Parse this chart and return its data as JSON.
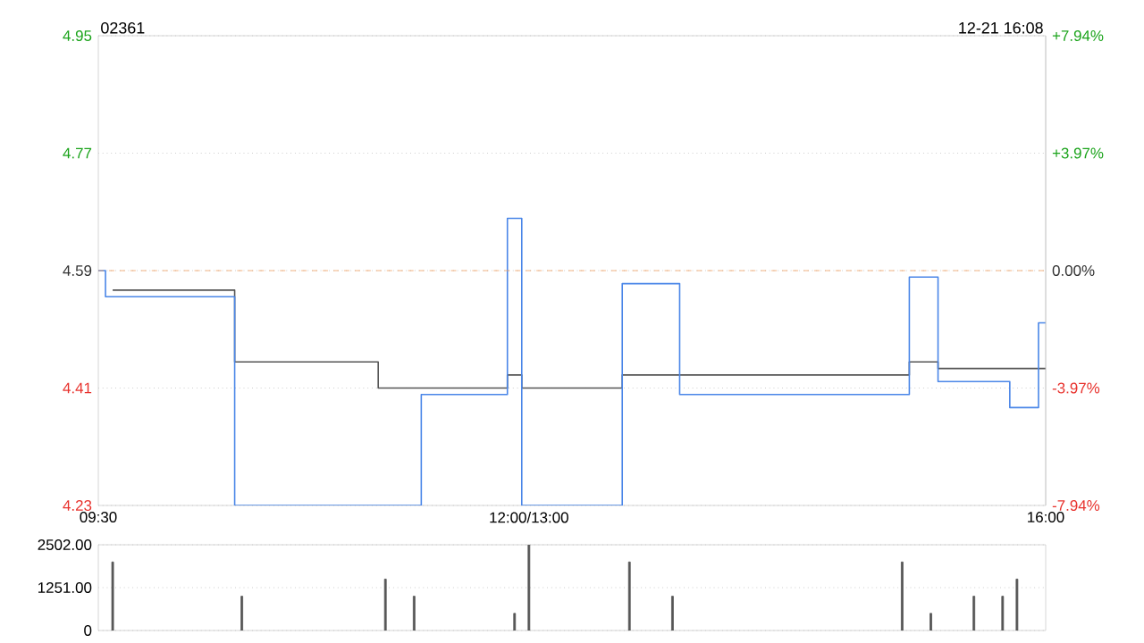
{
  "chart_data": [
    {
      "type": "step",
      "title": "02361",
      "annotations": [
        "12-21 16:08"
      ],
      "categories": [
        "09:30",
        null,
        null,
        null,
        null,
        null,
        null,
        null,
        null,
        null,
        null,
        null,
        null,
        null,
        null,
        null,
        null,
        null,
        null,
        null,
        null,
        null,
        null,
        null,
        null,
        null,
        null,
        null,
        null,
        null,
        "12:00/13:00",
        null,
        null,
        null,
        null,
        null,
        null,
        null,
        null,
        null,
        null,
        null,
        null,
        null,
        null,
        null,
        null,
        null,
        null,
        null,
        null,
        null,
        null,
        null,
        null,
        null,
        null,
        null,
        null,
        null,
        null,
        null,
        null,
        null,
        null,
        null,
        "16:00"
      ],
      "ylim": [
        4.23,
        4.95
      ],
      "yticks": [
        4.23,
        4.41,
        4.59,
        4.77,
        4.95
      ],
      "y2lim": [
        -7.94,
        7.94
      ],
      "y2ticks": [
        {
          "value": -7.94,
          "label": "-7.94%"
        },
        {
          "value": -3.97,
          "label": "-3.97%"
        },
        {
          "value": 0,
          "label": "0.00%"
        },
        {
          "value": 3.97,
          "label": "+3.97%"
        },
        {
          "value": 7.94,
          "label": "+7.94%"
        }
      ],
      "grid": "y",
      "ref_lines": [
        {
          "axis": "y",
          "value": 4.59,
          "color": "#f0a060",
          "line_style": "dashed"
        }
      ],
      "series": [
        {
          "color": "#4a86e8",
          "values": [
            4.59,
            4.55,
            4.55,
            4.55,
            4.55,
            4.55,
            4.55,
            4.55,
            4.55,
            4.55,
            4.23,
            4.23,
            4.23,
            4.23,
            4.23,
            4.23,
            4.23,
            4.23,
            4.23,
            4.23,
            4.23,
            4.23,
            4.23,
            4.4,
            4.4,
            4.4,
            4.4,
            4.4,
            4.4,
            4.67,
            4.23,
            4.23,
            4.23,
            4.23,
            4.23,
            4.23,
            4.23,
            4.57,
            4.57,
            4.57,
            4.57,
            4.4,
            4.4,
            4.4,
            4.4,
            4.4,
            4.4,
            4.4,
            4.4,
            4.4,
            4.4,
            4.4,
            4.4,
            4.4,
            4.4,
            4.4,
            4.4,
            4.58,
            4.58,
            4.42,
            4.42,
            4.42,
            4.42,
            4.42,
            4.38,
            4.38,
            4.51
          ]
        },
        {
          "color": "#555555",
          "values": [
            null,
            4.56,
            4.56,
            4.56,
            4.56,
            4.56,
            4.56,
            4.56,
            4.56,
            4.56,
            4.45,
            4.45,
            4.45,
            4.45,
            4.45,
            4.45,
            4.45,
            4.45,
            4.45,
            4.45,
            4.41,
            4.41,
            4.41,
            4.41,
            4.41,
            4.41,
            4.41,
            4.41,
            4.41,
            4.43,
            4.41,
            4.41,
            4.41,
            4.41,
            4.41,
            4.41,
            4.41,
            4.43,
            4.43,
            4.43,
            4.43,
            4.43,
            4.43,
            4.43,
            4.43,
            4.43,
            4.43,
            4.43,
            4.43,
            4.43,
            4.43,
            4.43,
            4.43,
            4.43,
            4.43,
            4.43,
            4.43,
            4.45,
            4.45,
            4.44,
            4.44,
            4.44,
            4.44,
            4.44,
            4.44,
            4.44,
            4.44
          ]
        }
      ]
    },
    {
      "type": "bar",
      "color": "#555555",
      "tick_labels": "y",
      "grid": "y",
      "categories": [
        null,
        null,
        null,
        null,
        null,
        null,
        null,
        null,
        null,
        null,
        null,
        null,
        null,
        null,
        null,
        null,
        null,
        null,
        null,
        null,
        null,
        null,
        null,
        null,
        null,
        null,
        null,
        null,
        null,
        null,
        null,
        null,
        null,
        null,
        null,
        null,
        null,
        null,
        null,
        null,
        null,
        null,
        null,
        null,
        null,
        null,
        null,
        null,
        null,
        null,
        null,
        null,
        null,
        null,
        null,
        null,
        null,
        null,
        null,
        null,
        null,
        null,
        null,
        null,
        null,
        null,
        null
      ],
      "ylim": [
        0,
        2502
      ],
      "yticks": [
        0,
        {
          "value": 1251,
          "label": "1251.00"
        },
        {
          "value": 2502,
          "label": "2502.00"
        }
      ],
      "values": [
        null,
        2000,
        null,
        null,
        null,
        null,
        null,
        null,
        null,
        null,
        1000,
        null,
        null,
        null,
        null,
        null,
        null,
        null,
        null,
        null,
        1500,
        null,
        1000,
        null,
        null,
        null,
        null,
        null,
        null,
        500,
        2500,
        null,
        null,
        null,
        null,
        null,
        null,
        2000,
        null,
        null,
        1000,
        null,
        null,
        null,
        null,
        null,
        null,
        null,
        null,
        null,
        null,
        null,
        null,
        null,
        null,
        null,
        2000,
        null,
        500,
        null,
        null,
        1000,
        null,
        1000,
        1500,
        null,
        null
      ]
    }
  ]
}
